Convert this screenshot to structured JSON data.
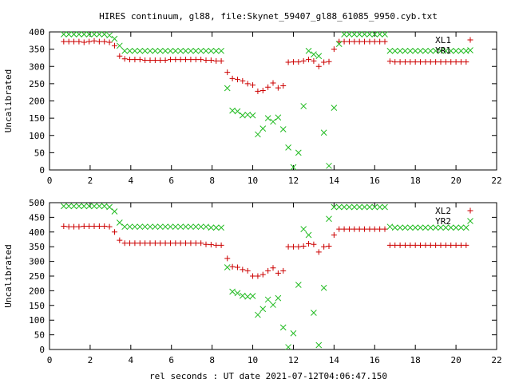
{
  "title": "HIRES continuum, gl88, file:Skynet_59407_gl88_61085_9950.cyb.txt",
  "xlabel": "rel seconds : UT date 2021-07-12T04:06:47.150",
  "colors": {
    "xl": "#cc0000",
    "yr": "#22bb22",
    "axis": "#000000"
  },
  "chart_data": [
    {
      "type": "scatter",
      "title": "HIRES continuum, gl88, file:Skynet_59407_gl88_61085_9950.cyb.txt",
      "xlabel": "",
      "ylabel": "Uncalibrated",
      "xlim": [
        0,
        22
      ],
      "ylim": [
        0,
        400
      ],
      "xticks": [
        0,
        2,
        4,
        6,
        8,
        10,
        12,
        14,
        16,
        18,
        20,
        22
      ],
      "yticks": [
        0,
        50,
        100,
        150,
        200,
        250,
        300,
        350,
        400
      ],
      "legend": "top-right",
      "series": [
        {
          "name": "XL1",
          "marker": "plus",
          "color": "#cc0000",
          "x": [
            0.7,
            0.95,
            1.2,
            1.45,
            1.7,
            1.95,
            2.2,
            2.45,
            2.7,
            2.95,
            3.2,
            3.45,
            3.7,
            3.95,
            4.2,
            4.45,
            4.7,
            4.95,
            5.2,
            5.45,
            5.7,
            5.95,
            6.2,
            6.45,
            6.7,
            6.95,
            7.2,
            7.45,
            7.7,
            7.95,
            8.2,
            8.45,
            8.75,
            9.0,
            9.25,
            9.5,
            9.75,
            10.0,
            10.25,
            10.5,
            10.75,
            11.0,
            11.25,
            11.5,
            11.75,
            12.0,
            12.25,
            12.5,
            12.75,
            13.0,
            13.25,
            13.5,
            13.75,
            14.0,
            14.25,
            14.5,
            14.75,
            15.0,
            15.25,
            15.5,
            15.75,
            16.0,
            16.25,
            16.5,
            16.75,
            17.0,
            17.25,
            17.5,
            17.75,
            18.0,
            18.25,
            18.5,
            18.75,
            19.0,
            19.25,
            19.5,
            19.75,
            20.0,
            20.25,
            20.5
          ],
          "y": [
            372,
            372,
            372,
            372,
            370,
            372,
            374,
            372,
            372,
            370,
            360,
            330,
            322,
            320,
            320,
            320,
            318,
            318,
            318,
            318,
            318,
            320,
            320,
            320,
            320,
            320,
            320,
            320,
            318,
            318,
            316,
            316,
            283,
            265,
            262,
            258,
            250,
            246,
            228,
            230,
            240,
            252,
            238,
            244,
            312,
            313,
            313,
            316,
            320,
            316,
            300,
            312,
            314,
            350,
            372,
            372,
            372,
            372,
            372,
            372,
            372,
            372,
            372,
            372,
            315,
            313,
            313,
            313,
            313,
            313,
            313,
            313,
            313,
            313,
            313,
            313,
            313,
            313,
            313,
            313
          ]
        },
        {
          "name": "YR1",
          "marker": "cross",
          "color": "#22bb22",
          "x": [
            0.7,
            0.95,
            1.2,
            1.45,
            1.7,
            1.95,
            2.2,
            2.45,
            2.7,
            2.95,
            3.2,
            3.45,
            3.7,
            3.95,
            4.2,
            4.45,
            4.7,
            4.95,
            5.2,
            5.45,
            5.7,
            5.95,
            6.2,
            6.45,
            6.7,
            6.95,
            7.2,
            7.45,
            7.7,
            7.95,
            8.2,
            8.45,
            8.75,
            9.0,
            9.25,
            9.5,
            9.75,
            10.0,
            10.25,
            10.5,
            10.75,
            11.0,
            11.25,
            11.5,
            11.75,
            12.0,
            12.25,
            12.5,
            12.75,
            13.0,
            13.25,
            13.5,
            13.75,
            14.0,
            14.25,
            14.5,
            14.75,
            15.0,
            15.25,
            15.5,
            15.75,
            16.0,
            16.25,
            16.5,
            16.75,
            17.0,
            17.25,
            17.5,
            17.75,
            18.0,
            18.25,
            18.5,
            18.75,
            19.0,
            19.25,
            19.5,
            19.75,
            20.0,
            20.25,
            20.5
          ],
          "y": [
            393,
            393,
            393,
            393,
            393,
            393,
            393,
            393,
            393,
            390,
            380,
            360,
            345,
            345,
            345,
            345,
            345,
            345,
            345,
            345,
            345,
            345,
            345,
            345,
            345,
            345,
            345,
            345,
            345,
            345,
            345,
            345,
            237,
            172,
            170,
            158,
            160,
            158,
            103,
            120,
            150,
            140,
            152,
            118,
            65,
            8,
            50,
            185,
            345,
            335,
            330,
            108,
            12,
            180,
            365,
            393,
            393,
            393,
            393,
            393,
            393,
            393,
            393,
            393,
            345,
            345,
            345,
            345,
            345,
            345,
            345,
            345,
            345,
            345,
            345,
            345,
            345,
            345,
            345,
            345
          ]
        }
      ]
    },
    {
      "type": "scatter",
      "title": "",
      "xlabel": "rel seconds : UT date 2021-07-12T04:06:47.150",
      "ylabel": "Uncalibrated",
      "xlim": [
        0,
        22
      ],
      "ylim": [
        0,
        500
      ],
      "xticks": [
        0,
        2,
        4,
        6,
        8,
        10,
        12,
        14,
        16,
        18,
        20,
        22
      ],
      "yticks": [
        0,
        50,
        100,
        150,
        200,
        250,
        300,
        350,
        400,
        450,
        500
      ],
      "legend": "top-right",
      "series": [
        {
          "name": "XL2",
          "marker": "plus",
          "color": "#cc0000",
          "x": [
            0.7,
            0.95,
            1.2,
            1.45,
            1.7,
            1.95,
            2.2,
            2.45,
            2.7,
            2.95,
            3.2,
            3.45,
            3.7,
            3.95,
            4.2,
            4.45,
            4.7,
            4.95,
            5.2,
            5.45,
            5.7,
            5.95,
            6.2,
            6.45,
            6.7,
            6.95,
            7.2,
            7.45,
            7.7,
            7.95,
            8.2,
            8.45,
            8.75,
            9.0,
            9.25,
            9.5,
            9.75,
            10.0,
            10.25,
            10.5,
            10.75,
            11.0,
            11.25,
            11.5,
            11.75,
            12.0,
            12.25,
            12.5,
            12.75,
            13.0,
            13.25,
            13.5,
            13.75,
            14.0,
            14.25,
            14.5,
            14.75,
            15.0,
            15.25,
            15.5,
            15.75,
            16.0,
            16.25,
            16.5,
            16.75,
            17.0,
            17.25,
            17.5,
            17.75,
            18.0,
            18.25,
            18.5,
            18.75,
            19.0,
            19.25,
            19.5,
            19.75,
            20.0,
            20.25,
            20.5
          ],
          "y": [
            420,
            418,
            418,
            418,
            420,
            420,
            420,
            420,
            420,
            418,
            400,
            372,
            362,
            362,
            362,
            362,
            362,
            362,
            362,
            362,
            362,
            362,
            362,
            362,
            362,
            362,
            362,
            362,
            358,
            357,
            355,
            355,
            310,
            282,
            280,
            272,
            268,
            250,
            250,
            255,
            268,
            278,
            260,
            268,
            350,
            350,
            350,
            352,
            360,
            358,
            332,
            350,
            352,
            390,
            410,
            410,
            410,
            410,
            410,
            410,
            410,
            410,
            410,
            410,
            355,
            355,
            355,
            355,
            355,
            355,
            355,
            355,
            355,
            355,
            355,
            355,
            355,
            355,
            355,
            355
          ]
        },
        {
          "name": "YR2",
          "marker": "cross",
          "color": "#22bb22",
          "x": [
            0.7,
            0.95,
            1.2,
            1.45,
            1.7,
            1.95,
            2.2,
            2.45,
            2.7,
            2.95,
            3.2,
            3.45,
            3.7,
            3.95,
            4.2,
            4.45,
            4.7,
            4.95,
            5.2,
            5.45,
            5.7,
            5.95,
            6.2,
            6.45,
            6.7,
            6.95,
            7.2,
            7.45,
            7.7,
            7.95,
            8.2,
            8.45,
            8.75,
            9.0,
            9.25,
            9.5,
            9.75,
            10.0,
            10.25,
            10.5,
            10.75,
            11.0,
            11.25,
            11.5,
            11.75,
            12.0,
            12.25,
            12.5,
            12.75,
            13.0,
            13.25,
            13.5,
            13.75,
            14.0,
            14.25,
            14.5,
            14.75,
            15.0,
            15.25,
            15.5,
            15.75,
            16.0,
            16.25,
            16.5,
            16.75,
            17.0,
            17.25,
            17.5,
            17.75,
            18.0,
            18.25,
            18.5,
            18.75,
            19.0,
            19.25,
            19.5,
            19.75,
            20.0,
            20.25,
            20.5
          ],
          "y": [
            488,
            488,
            488,
            488,
            488,
            488,
            488,
            488,
            488,
            485,
            470,
            432,
            418,
            418,
            418,
            418,
            418,
            418,
            418,
            418,
            418,
            418,
            418,
            418,
            418,
            418,
            418,
            418,
            418,
            415,
            415,
            415,
            280,
            197,
            192,
            183,
            180,
            182,
            118,
            138,
            170,
            152,
            175,
            75,
            8,
            55,
            220,
            410,
            390,
            125,
            15,
            210,
            445,
            485,
            485,
            485,
            485,
            485,
            485,
            485,
            485,
            485,
            485,
            485,
            418,
            415,
            415,
            415,
            415,
            415,
            415,
            415,
            415,
            415,
            415,
            415,
            415,
            415,
            415,
            415
          ]
        }
      ]
    }
  ]
}
